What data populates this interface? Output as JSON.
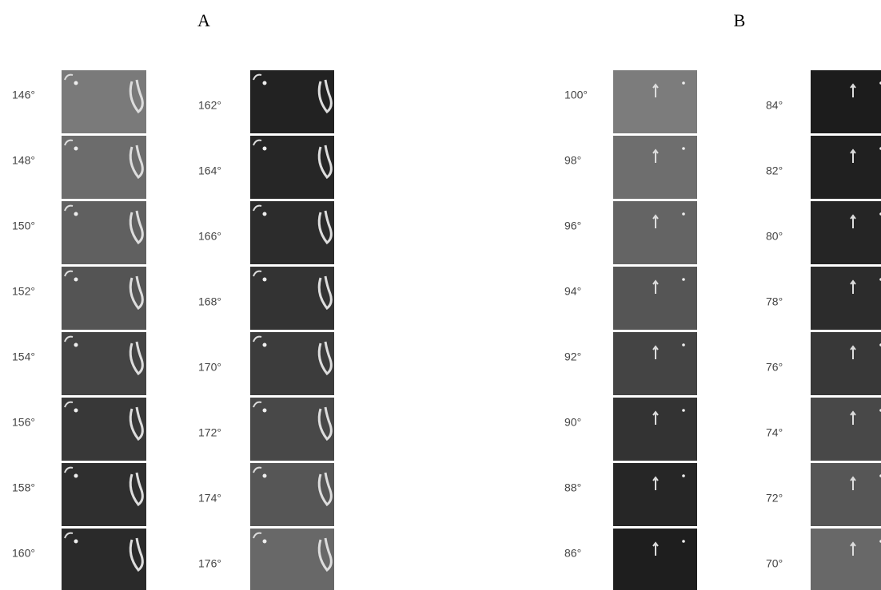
{
  "panels": [
    {
      "label": "A",
      "columns": [
        {
          "frames": [
            {
              "angle": "146°",
              "color": "#7a7a7a"
            },
            {
              "angle": "148°",
              "color": "#6c6c6c"
            },
            {
              "angle": "150°",
              "color": "#606060"
            },
            {
              "angle": "152°",
              "color": "#545454"
            },
            {
              "angle": "154°",
              "color": "#444444"
            },
            {
              "angle": "156°",
              "color": "#383838"
            },
            {
              "angle": "158°",
              "color": "#2f2f2f"
            },
            {
              "angle": "160°",
              "color": "#2a2a2a"
            }
          ]
        },
        {
          "frames": [
            {
              "angle": "162°",
              "color": "#222222"
            },
            {
              "angle": "164°",
              "color": "#262626"
            },
            {
              "angle": "166°",
              "color": "#2c2c2c"
            },
            {
              "angle": "168°",
              "color": "#333333"
            },
            {
              "angle": "170°",
              "color": "#3c3c3c"
            },
            {
              "angle": "172°",
              "color": "#484848"
            },
            {
              "angle": "174°",
              "color": "#565656"
            },
            {
              "angle": "176°",
              "color": "#686868"
            }
          ]
        }
      ]
    },
    {
      "label": "B",
      "columns": [
        {
          "frames": [
            {
              "angle": "100°",
              "color": "#7c7c7c"
            },
            {
              "angle": "98°",
              "color": "#6e6e6e"
            },
            {
              "angle": "96°",
              "color": "#646464"
            },
            {
              "angle": "94°",
              "color": "#555555"
            },
            {
              "angle": "92°",
              "color": "#444444"
            },
            {
              "angle": "90°",
              "color": "#333333"
            },
            {
              "angle": "88°",
              "color": "#262626"
            },
            {
              "angle": "86°",
              "color": "#1e1e1e"
            }
          ]
        },
        {
          "frames": [
            {
              "angle": "84°",
              "color": "#1c1c1c"
            },
            {
              "angle": "82°",
              "color": "#202020"
            },
            {
              "angle": "80°",
              "color": "#252525"
            },
            {
              "angle": "78°",
              "color": "#2c2c2c"
            },
            {
              "angle": "76°",
              "color": "#383838"
            },
            {
              "angle": "74°",
              "color": "#484848"
            },
            {
              "angle": "72°",
              "color": "#565656"
            },
            {
              "angle": "70°",
              "color": "#686868"
            }
          ]
        }
      ]
    }
  ]
}
